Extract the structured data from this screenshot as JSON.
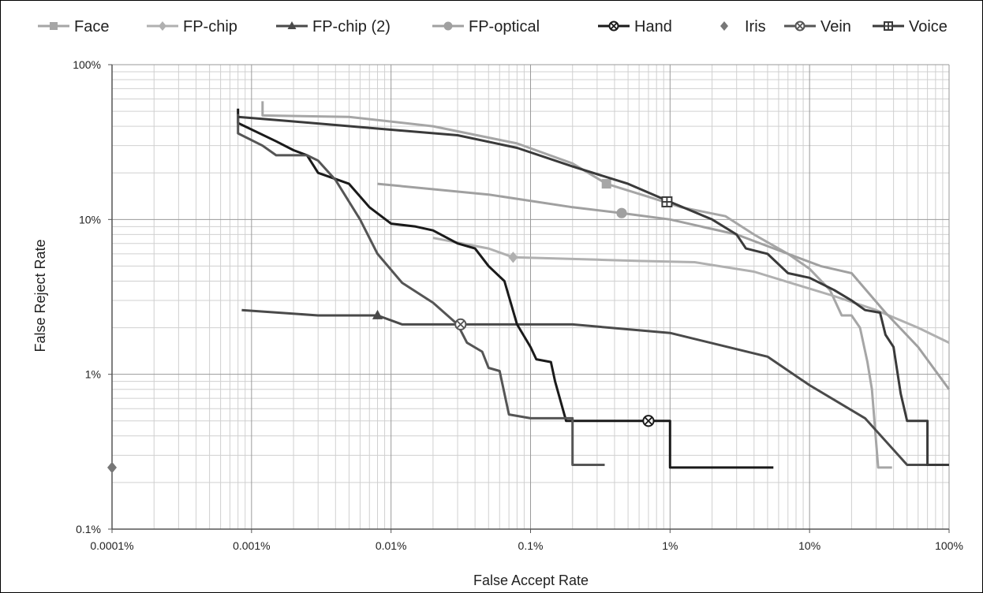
{
  "chart_data": {
    "type": "line",
    "title": "",
    "xlabel": "False Accept Rate",
    "ylabel": "False Reject Rate",
    "xscale": "log",
    "yscale": "log",
    "xlim": [
      0.0001,
      100
    ],
    "ylim": [
      0.1,
      100
    ],
    "x_ticks": [
      0.0001,
      0.001,
      0.01,
      0.1,
      1,
      10,
      100
    ],
    "x_tick_labels": [
      "0.0001%",
      "0.001%",
      "0.01%",
      "0.1%",
      "1%",
      "10%",
      "100%"
    ],
    "y_ticks": [
      0.1,
      1,
      10,
      100
    ],
    "y_tick_labels": [
      "0.1%",
      "1%",
      "10%",
      "100%"
    ],
    "grid": true,
    "legend_position": "top",
    "series": [
      {
        "name": "Face",
        "color": "#a6a6a6",
        "marker": "square",
        "marker_at": [
          0.35,
          17
        ],
        "points": [
          [
            0.0012,
            58
          ],
          [
            0.0012,
            47
          ],
          [
            0.005,
            46
          ],
          [
            0.02,
            40
          ],
          [
            0.08,
            31
          ],
          [
            0.2,
            23
          ],
          [
            0.35,
            17
          ],
          [
            0.7,
            14
          ],
          [
            1.2,
            12
          ],
          [
            2.5,
            10.5
          ],
          [
            4,
            8
          ],
          [
            7,
            6
          ],
          [
            10,
            4.8
          ],
          [
            14,
            3.5
          ],
          [
            17,
            2.4
          ],
          [
            20,
            2.4
          ],
          [
            23,
            2
          ],
          [
            26,
            1.2
          ],
          [
            28,
            0.8
          ],
          [
            31,
            0.25
          ],
          [
            39,
            0.25
          ]
        ]
      },
      {
        "name": "FP-chip",
        "color": "#b0b0b0",
        "marker": "diamond",
        "marker_at": [
          0.075,
          5.7
        ],
        "points": [
          [
            0.02,
            7.6
          ],
          [
            0.05,
            6.5
          ],
          [
            0.075,
            5.7
          ],
          [
            0.3,
            5.5
          ],
          [
            0.6,
            5.4
          ],
          [
            1.5,
            5.3
          ],
          [
            4,
            4.6
          ],
          [
            8,
            3.8
          ],
          [
            15,
            3.2
          ],
          [
            30,
            2.6
          ],
          [
            60,
            2.0
          ],
          [
            100,
            1.6
          ]
        ]
      },
      {
        "name": "FP-chip (2)",
        "color": "#4a4a4a",
        "marker": "triangle",
        "marker_at": [
          0.008,
          2.4
        ],
        "points": [
          [
            0.00085,
            2.6
          ],
          [
            0.003,
            2.4
          ],
          [
            0.008,
            2.4
          ],
          [
            0.012,
            2.1
          ],
          [
            0.05,
            2.1
          ],
          [
            0.2,
            2.1
          ],
          [
            1,
            1.85
          ],
          [
            5,
            1.3
          ],
          [
            10,
            0.85
          ],
          [
            25,
            0.52
          ],
          [
            50,
            0.26
          ],
          [
            100,
            0.26
          ]
        ]
      },
      {
        "name": "FP-optical",
        "color": "#a0a0a0",
        "marker": "circle",
        "marker_at": [
          0.45,
          11
        ],
        "points": [
          [
            0.008,
            17
          ],
          [
            0.05,
            14.5
          ],
          [
            0.2,
            12
          ],
          [
            0.45,
            11
          ],
          [
            1,
            10
          ],
          [
            3,
            8
          ],
          [
            7,
            6
          ],
          [
            12,
            5
          ],
          [
            20,
            4.5
          ],
          [
            35,
            2.5
          ],
          [
            60,
            1.5
          ],
          [
            100,
            0.8
          ]
        ]
      },
      {
        "name": "Hand",
        "color": "#1a1a1a",
        "marker": "circle-x",
        "marker_at": [
          0.7,
          0.5
        ],
        "points": [
          [
            0.0008,
            52
          ],
          [
            0.0008,
            42
          ],
          [
            0.0015,
            32
          ],
          [
            0.002,
            28
          ],
          [
            0.0025,
            26
          ],
          [
            0.003,
            20
          ],
          [
            0.005,
            17
          ],
          [
            0.007,
            12
          ],
          [
            0.01,
            9.4
          ],
          [
            0.015,
            9
          ],
          [
            0.02,
            8.5
          ],
          [
            0.03,
            7
          ],
          [
            0.04,
            6.5
          ],
          [
            0.05,
            5
          ],
          [
            0.065,
            4
          ],
          [
            0.08,
            2.1
          ],
          [
            0.1,
            1.5
          ],
          [
            0.11,
            1.25
          ],
          [
            0.14,
            1.2
          ],
          [
            0.15,
            0.9
          ],
          [
            0.18,
            0.5
          ],
          [
            0.5,
            0.5
          ],
          [
            0.7,
            0.5
          ],
          [
            1,
            0.5
          ],
          [
            1,
            0.25
          ],
          [
            5.5,
            0.25
          ]
        ]
      },
      {
        "name": "Iris",
        "color": "#777777",
        "marker": "diamond",
        "marker_at": [
          0.0001,
          0.25
        ],
        "points": [
          [
            0.0001,
            0.25
          ]
        ]
      },
      {
        "name": "Vein",
        "color": "#555555",
        "marker": "circle-x",
        "marker_at": [
          0.0315,
          2.1
        ],
        "points": [
          [
            0.0008,
            48
          ],
          [
            0.0008,
            36
          ],
          [
            0.0012,
            30
          ],
          [
            0.0015,
            26
          ],
          [
            0.0025,
            26
          ],
          [
            0.003,
            24
          ],
          [
            0.004,
            18
          ],
          [
            0.006,
            10
          ],
          [
            0.008,
            6
          ],
          [
            0.012,
            3.9
          ],
          [
            0.02,
            2.9
          ],
          [
            0.03,
            2.1
          ],
          [
            0.035,
            1.6
          ],
          [
            0.045,
            1.4
          ],
          [
            0.05,
            1.1
          ],
          [
            0.06,
            1.05
          ],
          [
            0.07,
            0.55
          ],
          [
            0.1,
            0.52
          ],
          [
            0.2,
            0.52
          ],
          [
            0.2,
            0.26
          ],
          [
            0.34,
            0.26
          ]
        ]
      },
      {
        "name": "Voice",
        "color": "#3a3a3a",
        "marker": "square-plus",
        "marker_at": [
          0.95,
          13
        ],
        "points": [
          [
            0.0008,
            46
          ],
          [
            0.002,
            43
          ],
          [
            0.01,
            38
          ],
          [
            0.03,
            35
          ],
          [
            0.08,
            29
          ],
          [
            0.2,
            22
          ],
          [
            0.5,
            17
          ],
          [
            1,
            13
          ],
          [
            2,
            10
          ],
          [
            3,
            8
          ],
          [
            3.5,
            6.5
          ],
          [
            5,
            6
          ],
          [
            7,
            4.5
          ],
          [
            10,
            4.2
          ],
          [
            15,
            3.5
          ],
          [
            20,
            3
          ],
          [
            25,
            2.6
          ],
          [
            32,
            2.5
          ],
          [
            35,
            1.8
          ],
          [
            40,
            1.5
          ],
          [
            45,
            0.75
          ],
          [
            50,
            0.5
          ],
          [
            70,
            0.5
          ],
          [
            70,
            0.26
          ],
          [
            100,
            0.26
          ]
        ]
      }
    ]
  }
}
